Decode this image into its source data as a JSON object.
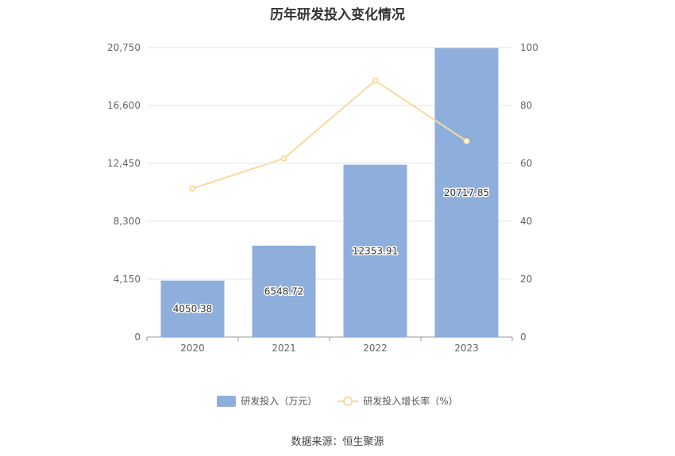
{
  "chart_data": {
    "type": "bar",
    "title": "历年研发投入变化情况",
    "categories": [
      "2020",
      "2021",
      "2022",
      "2023"
    ],
    "series": [
      {
        "name": "研发投入（万元）",
        "type": "bar",
        "axis": "left",
        "values": [
          4050.38,
          6548.72,
          12353.91,
          20717.85
        ],
        "labels": [
          "4050.38",
          "6548.72",
          "12353.91",
          "20717.85"
        ],
        "color": "#8eaedb"
      },
      {
        "name": "研发投入增长率（%）",
        "type": "line",
        "axis": "right",
        "values": [
          51.3,
          61.7,
          88.6,
          67.7
        ],
        "color": "#fad99e"
      }
    ],
    "y_left": {
      "ylim": [
        0,
        20750
      ],
      "ticks": [
        0,
        4150,
        8300,
        12450,
        16600,
        20750
      ],
      "tick_labels": [
        "0",
        "4,150",
        "8,300",
        "12,450",
        "16,600",
        "20,750"
      ]
    },
    "y_right": {
      "ylim": [
        0,
        100
      ],
      "ticks": [
        0,
        20,
        40,
        60,
        80,
        100
      ],
      "tick_labels": [
        "0",
        "20",
        "40",
        "60",
        "80",
        "100"
      ]
    },
    "grid": true,
    "legend_position": "bottom"
  },
  "legend": {
    "bar_label": "研发投入（万元）",
    "line_label": "研发投入增长率（%）"
  },
  "source": "数据来源：恒生聚源",
  "colors": {
    "bar": "#8eaedb",
    "line": "#fad99e",
    "grid": "#e3e6ee",
    "axis_text": "#666666"
  }
}
